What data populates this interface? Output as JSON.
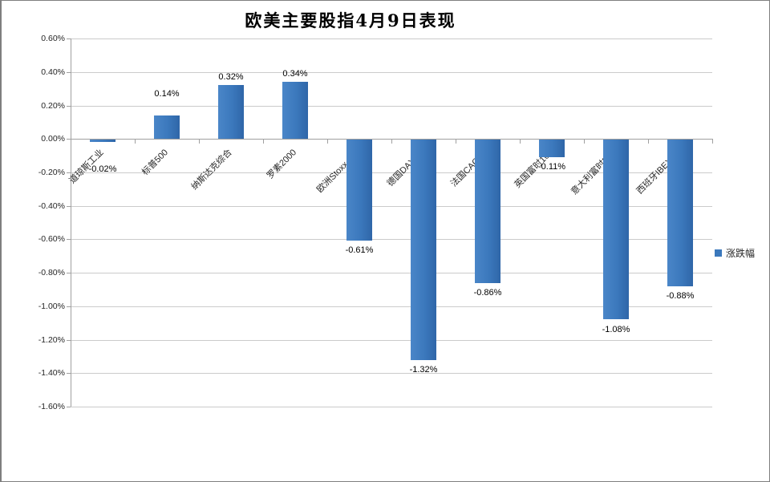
{
  "chart_data": {
    "type": "bar",
    "title": "欧美主要股指4月9日表现",
    "categories": [
      "道琼斯工业",
      "标普500",
      "纳斯达克综合",
      "罗素2000",
      "欧洲Stoxx 600",
      "德国DAX 30",
      "法国CAC 40",
      "英国富时100",
      "意大利富时MIB",
      "西班牙IBEX 35"
    ],
    "series": [
      {
        "name": "涨跌幅",
        "values": [
          -0.02,
          0.14,
          0.32,
          0.34,
          -0.61,
          -1.32,
          -0.86,
          -0.11,
          -1.08,
          -0.88
        ]
      }
    ],
    "data_labels": [
      "-0.02%",
      "0.14%",
      "0.32%",
      "0.34%",
      "-0.61%",
      "-1.32%",
      "-0.86%",
      "-0.11%",
      "-1.08%",
      "-0.88%"
    ],
    "unit": "%",
    "ylim": [
      -1.6,
      0.6
    ],
    "ytick_step": 0.2,
    "ytick_labels": [
      "0.60%",
      "0.40%",
      "0.20%",
      "0.00%",
      "-0.20%",
      "-0.40%",
      "-0.60%",
      "-0.80%",
      "-1.00%",
      "-1.20%",
      "-1.40%",
      "-1.60%"
    ],
    "grid": true,
    "legend": {
      "label": "涨跌幅",
      "position": "middle-right",
      "swatch_color": "#3B78BC"
    },
    "colors": {
      "bar": "#3B78BC",
      "bar_gradient_left": "#4A86C8",
      "bar_gradient_right": "#2F66A8",
      "gridline": "#CBCBCB",
      "axis": "#A0A0A0",
      "label_text": "#000000"
    }
  }
}
